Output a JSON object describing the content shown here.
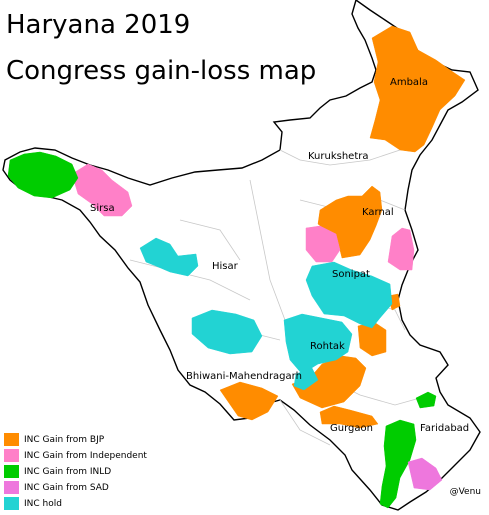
{
  "title_line1": "Haryana 2019",
  "title_line2": "Congress gain-loss map",
  "credit": "@Venu",
  "colors": {
    "inc_gain_bjp": "#ff8c00",
    "inc_gain_independent": "#ff80c8",
    "inc_gain_inld": "#00cc00",
    "inc_gain_sad": "#ee77dd",
    "inc_hold": "#22d3d3",
    "land": "#ffffff",
    "border": "#000000"
  },
  "legend": [
    {
      "label": "INC Gain from BJP",
      "color": "#ff8c00"
    },
    {
      "label": "INC Gain from Independent",
      "color": "#ff80c8"
    },
    {
      "label": "INC Gain from INLD",
      "color": "#00cc00"
    },
    {
      "label": "INC Gain from SAD",
      "color": "#ee77dd"
    },
    {
      "label": "INC hold",
      "color": "#22d3d3"
    }
  ],
  "districts": {
    "ambala": "Ambala",
    "kurukshetra": "Kurukshetra",
    "sirsa": "Sirsa",
    "karnal": "Karnal",
    "hisar": "Hisar",
    "sonipat": "Sonipat",
    "rohtak": "Rohtak",
    "bhiwani": "Bhiwani-Mahendragarh",
    "gurgaon": "Gurgaon",
    "faridabad": "Faridabad"
  }
}
